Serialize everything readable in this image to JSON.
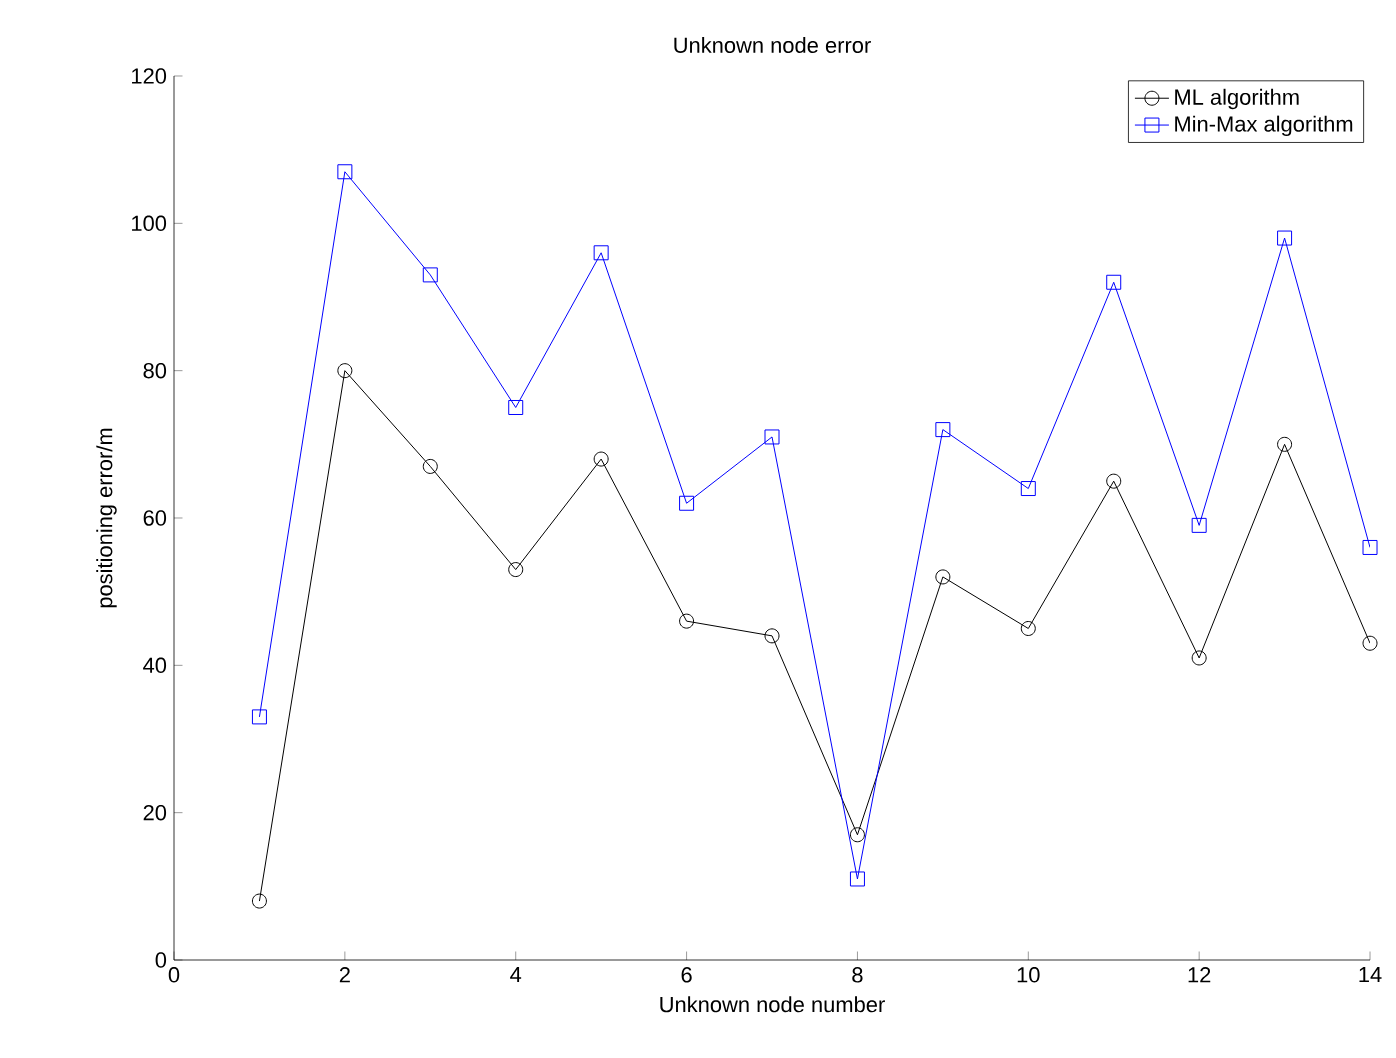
{
  "chart_data": {
    "type": "line",
    "title": "Unknown node error",
    "xlabel": "Unknown node number",
    "ylabel": "positioning error/m",
    "x": [
      1,
      2,
      3,
      4,
      5,
      6,
      7,
      8,
      9,
      10,
      11,
      12,
      13,
      14
    ],
    "series": [
      {
        "name": "ML algorithm",
        "color": "#000000",
        "marker": "circle",
        "values": [
          8,
          80,
          67,
          53,
          68,
          46,
          44,
          17,
          52,
          45,
          65,
          41,
          70,
          43
        ]
      },
      {
        "name": "Min-Max algorithm",
        "color": "#0000ff",
        "marker": "square",
        "values": [
          33,
          107,
          93,
          75,
          96,
          62,
          71,
          11,
          72,
          64,
          92,
          59,
          98,
          56
        ]
      }
    ],
    "xlim": [
      0,
      14
    ],
    "xticks": [
      0,
      2,
      4,
      6,
      8,
      10,
      12,
      14
    ],
    "ylim": [
      0,
      120
    ],
    "yticks": [
      0,
      20,
      40,
      60,
      80,
      100,
      120
    ],
    "legend": "top right",
    "grid": false,
    "line_style": "solid"
  }
}
